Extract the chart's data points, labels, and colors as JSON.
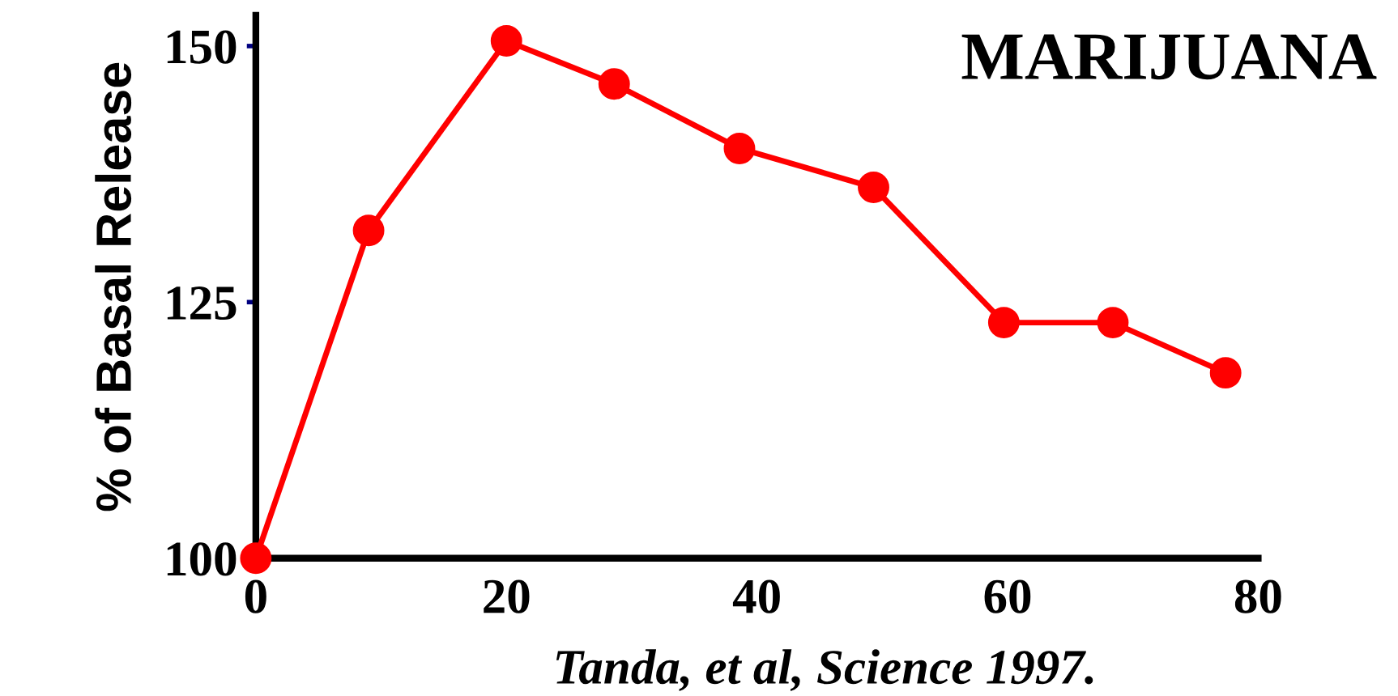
{
  "chart_data": {
    "type": "line",
    "title": "MARIJUANA",
    "ylabel": "% of Basal Release",
    "annotations": [
      "Tanda, et al, Science 1997."
    ],
    "x": [
      0,
      9,
      20,
      28.6,
      38.6,
      49.3,
      59.7,
      68.4,
      77.4
    ],
    "series": [
      {
        "color": "#ff0000",
        "values": [
          100,
          132,
          150.5,
          146.3,
          140,
          136.2,
          123,
          123,
          118.1
        ]
      }
    ],
    "xlim": [
      0,
      80
    ],
    "ylim": [
      100,
      153
    ],
    "xticks": [
      0,
      20,
      40,
      60,
      80
    ],
    "yticks": [
      100,
      125,
      150
    ],
    "marker": "circle",
    "line_style": "solid",
    "grid": false,
    "legend": false
  }
}
